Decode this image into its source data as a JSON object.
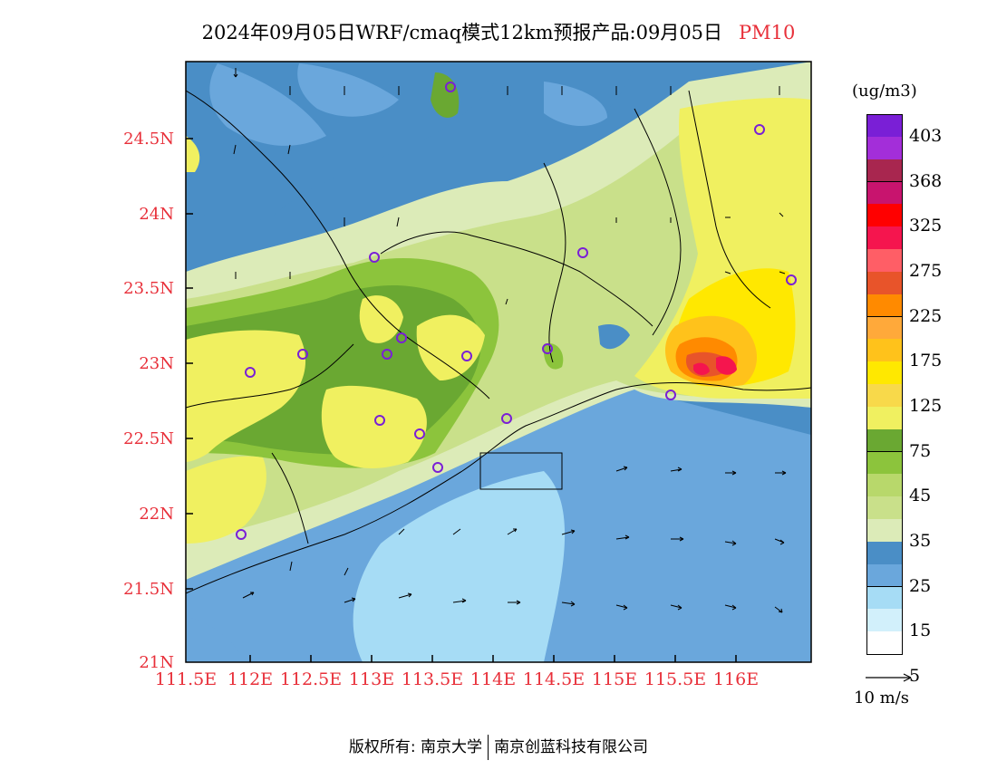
{
  "title": {
    "main": "2024年09月05日WRF/cmaq模式12km预报产品:09月05日",
    "variable": "PM10"
  },
  "map": {
    "lat_labels": [
      "24.5N",
      "24N",
      "23.5N",
      "23N",
      "22.5N",
      "22N",
      "21.5N",
      "21N"
    ],
    "lon_labels": [
      "111.5E",
      "112E",
      "112.5E",
      "113E",
      "113.5E",
      "114E",
      "114.5E",
      "115E",
      "115.5E",
      "116E"
    ],
    "lat_range": [
      21,
      25
    ],
    "lon_range": [
      111.5,
      116.7
    ],
    "hotspot": {
      "lon": 115.65,
      "lat": 22.95,
      "description_level": "275-325"
    }
  },
  "colorbar": {
    "unit": "(ug/m3)",
    "labels": [
      "403",
      "368",
      "325",
      "275",
      "225",
      "175",
      "125",
      "75",
      "45",
      "35",
      "25",
      "15",
      "5"
    ],
    "colors": [
      "#7a1fd6",
      "#a32ed9",
      "#a8264f",
      "#c8146e",
      "#ff0000",
      "#f5154e",
      "#ff5e66",
      "#e8542a",
      "#ff8a00",
      "#ffa93a",
      "#ffc21b",
      "#ffe800",
      "#f8d94a",
      "#f0f060",
      "#6aa832",
      "#8cc43c",
      "#b8d86b",
      "#c9e08a",
      "#dcebb8",
      "#4a8ec6",
      "#6aa7dc",
      "#a6dcf5",
      "#d2f0fb",
      "#ffffff"
    ]
  },
  "wind_reference": {
    "label": "10 m/s"
  },
  "footer": {
    "copyright_left": "版权所有: 南京大学",
    "copyright_right": "南京创蓝科技有限公司"
  }
}
